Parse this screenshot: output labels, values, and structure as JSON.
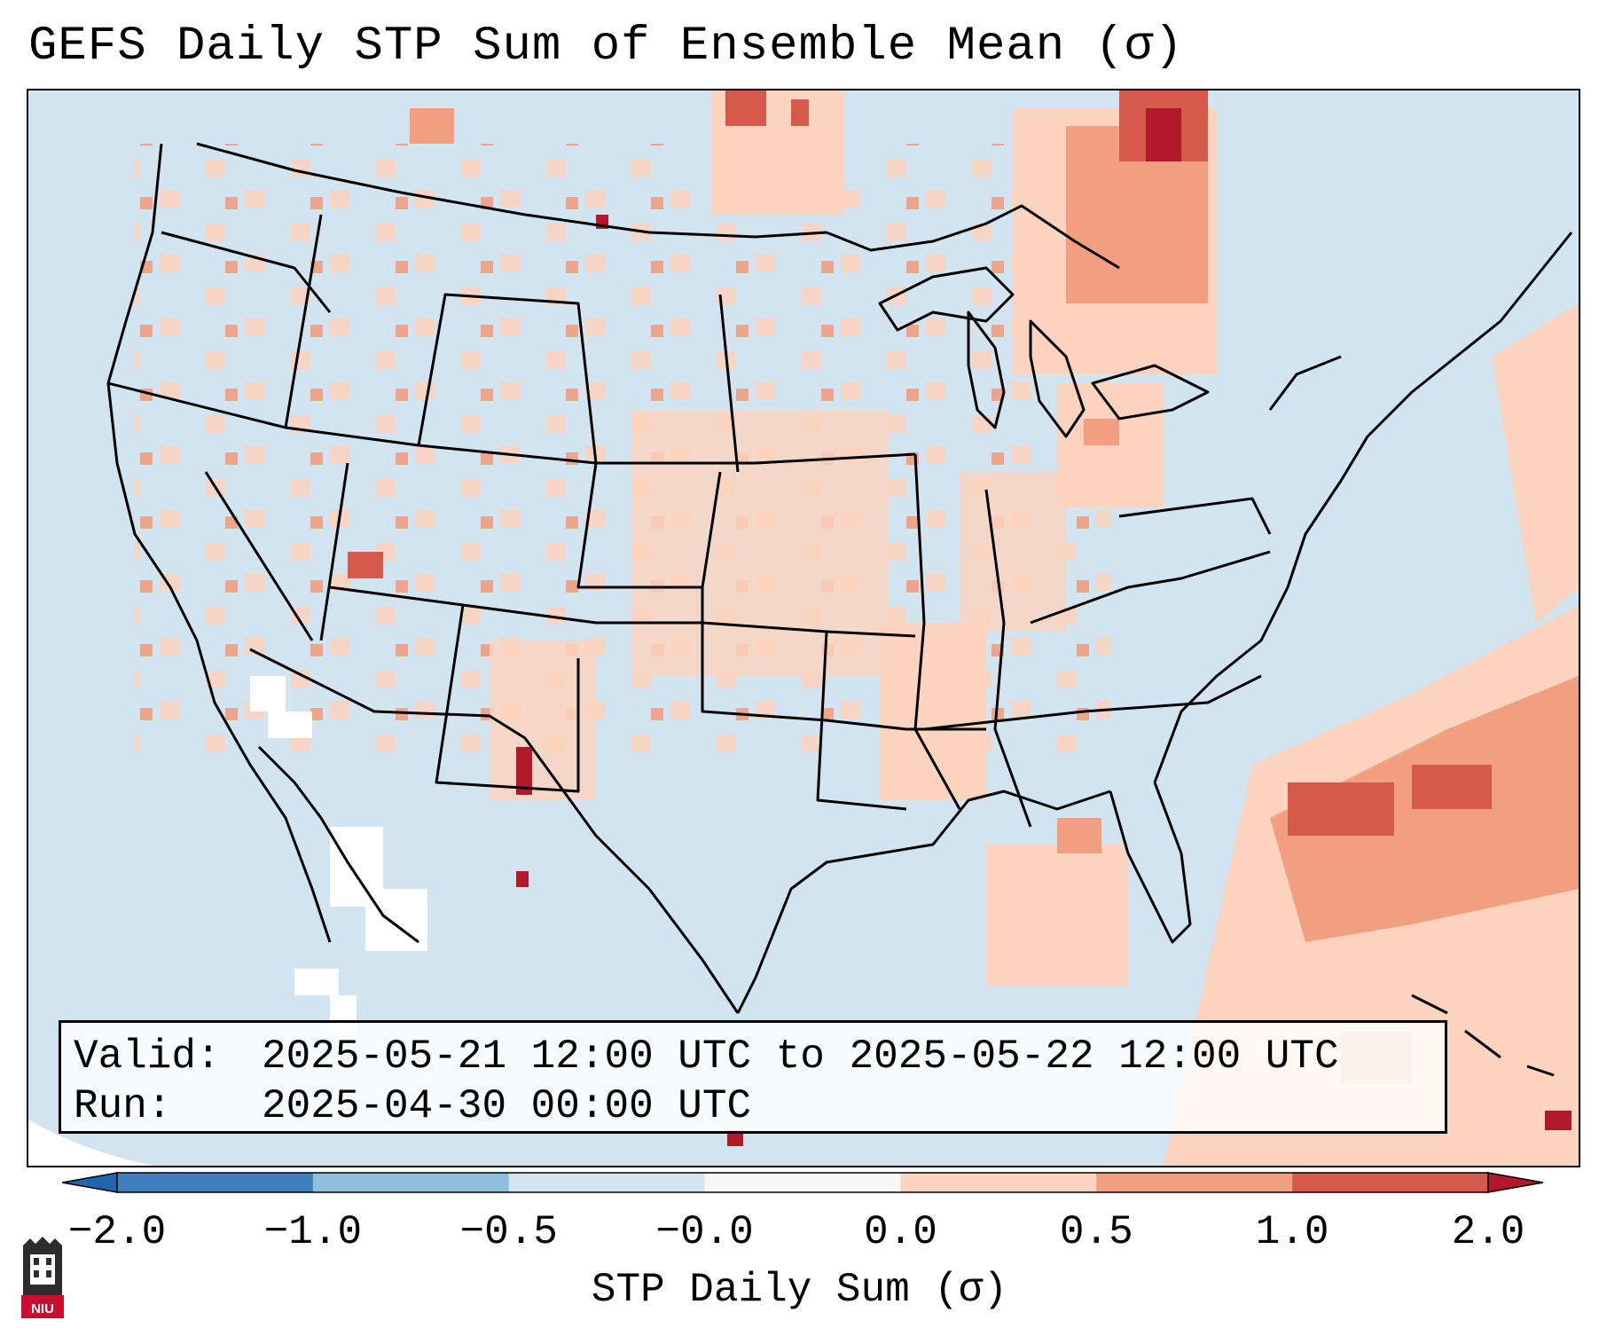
{
  "title": "GEFS Daily STP Sum of Ensemble Mean (σ)",
  "info": {
    "valid_key": "Valid:",
    "valid_value": "2025-05-21 12:00 UTC to 2025-05-22 12:00 UTC",
    "run_key": "Run:",
    "run_value": "2025-04-30 00:00 UTC"
  },
  "colorbar": {
    "label": "STP Daily Sum (σ)",
    "ticks": [
      "−2.0",
      "−1.0",
      "−0.5",
      "−0.0",
      "0.0",
      "0.5",
      "1.0",
      "2.0"
    ],
    "bins": [
      {
        "color": "#3f7fbd"
      },
      {
        "color": "#8ebfdd"
      },
      {
        "color": "#d4e5f1"
      },
      {
        "color": "#f7f7f7"
      },
      {
        "color": "#fbd3bf"
      },
      {
        "color": "#f29e80"
      },
      {
        "color": "#d65a4b"
      }
    ],
    "extend_low_color": "#2166ac",
    "extend_high_color": "#b2182b"
  },
  "map": {
    "ocean_color": "#d2e4ef",
    "hatch_color": "#fbd3bf",
    "boundary_color": "#000000"
  },
  "logo": {
    "text": "NIU"
  }
}
